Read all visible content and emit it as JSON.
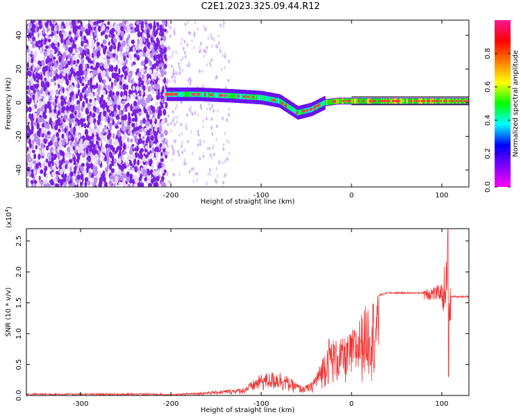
{
  "title": "C2E1.2023.325.09.44.R12",
  "colors": {
    "line": "#ee3333",
    "frame": "#000000",
    "colormap": [
      "#ff00ff",
      "#7f00ff",
      "#0000ff",
      "#00ffff",
      "#00ff00",
      "#ffff00",
      "#ff7f00",
      "#ff0000",
      "#ff1493"
    ]
  },
  "chart_data": [
    {
      "type": "heatmap",
      "xlabel": "Height of straight line (km)",
      "ylabel": "Frequency (Hz)",
      "xlim": [
        -360,
        130
      ],
      "ylim": [
        -50,
        49
      ],
      "x_ticks": [
        -300,
        -200,
        -100,
        0,
        100
      ],
      "y_ticks": [
        -40,
        -20,
        0,
        20,
        40
      ],
      "colorbar": {
        "label": "Normalized spectral amplitude",
        "range": [
          0.0,
          1.0
        ],
        "ticks": [
          "0.0",
          "0.2",
          "0.4",
          "0.6",
          "0.8"
        ]
      },
      "ridge": {
        "description_points_x": [
          -205,
          -170,
          -130,
          -100,
          -80,
          -60,
          -45,
          -30,
          -15,
          0,
          40,
          80,
          100,
          130
        ],
        "frequency_hz": [
          5,
          5,
          4,
          3,
          1,
          -6,
          -4,
          0,
          1,
          1,
          1,
          1,
          1,
          1
        ]
      }
    },
    {
      "type": "line",
      "xlabel": "Height of straight line (km)",
      "ylabel": "SNR (10 * v/v)",
      "y_multiplier": "(x10",
      "y_multiplier_exp": "4",
      "y_multiplier_close": ")",
      "xlim": [
        -360,
        130
      ],
      "ylim": [
        0,
        2.7
      ],
      "x_ticks": [
        -300,
        -200,
        -100,
        0,
        100
      ],
      "y_ticks": [
        "0.0",
        "0.5",
        "1.0",
        "1.5",
        "2.0",
        "2.5"
      ],
      "envelope": {
        "x": [
          -360,
          -200,
          -160,
          -120,
          -100,
          -80,
          -55,
          -45,
          -35,
          -25,
          -15,
          -5,
          5,
          15,
          25,
          40,
          60,
          80,
          95,
          102,
          105,
          107,
          108,
          110,
          115,
          130
        ],
        "y": [
          0.02,
          0.02,
          0.06,
          0.12,
          0.35,
          0.4,
          0.15,
          0.2,
          0.5,
          0.95,
          0.9,
          0.95,
          1.15,
          1.45,
          1.6,
          1.66,
          1.66,
          1.66,
          1.65,
          1.7,
          1.8,
          2.5,
          1.4,
          1.6,
          1.6,
          1.6
        ]
      }
    }
  ]
}
